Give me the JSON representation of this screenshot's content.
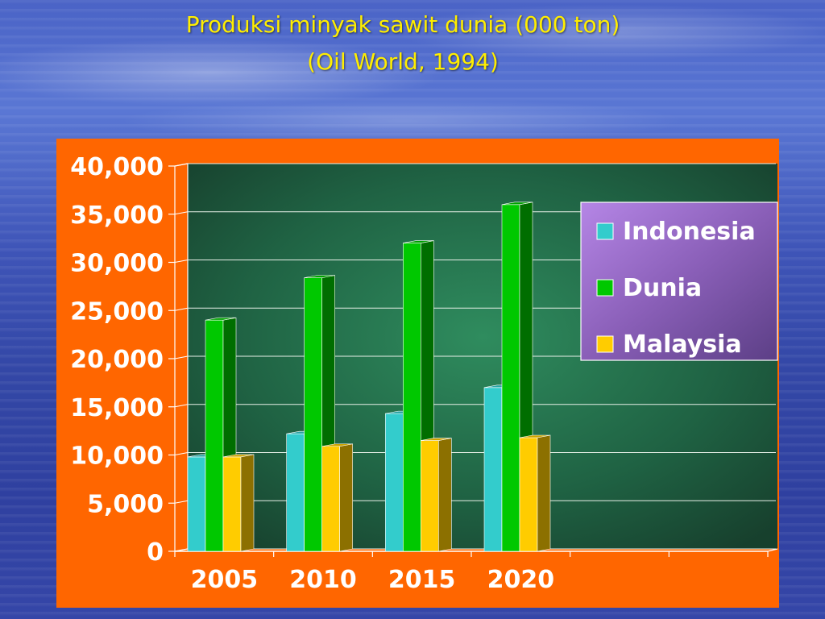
{
  "slide": {
    "title_line1": "Produksi minyak sawit dunia (000 ton)",
    "title_line2": "(Oil World, 1994)"
  },
  "colors": {
    "panel": "#ff6600",
    "plot_bg": "#1f6a44",
    "title": "#ffee00"
  },
  "chart_data": {
    "type": "bar",
    "categories": [
      "2005",
      "2010",
      "2015",
      "2020"
    ],
    "series": [
      {
        "name": "Indonesia",
        "values": [
          9800,
          12200,
          14300,
          17000
        ],
        "color": "#33cccc"
      },
      {
        "name": "Dunia",
        "values": [
          24000,
          28400,
          32000,
          36000
        ],
        "color": "#00c800"
      },
      {
        "name": "Malaysia",
        "values": [
          9800,
          10900,
          11500,
          11800
        ],
        "color": "#ffcc00"
      }
    ],
    "ylim": [
      0,
      40000
    ],
    "yticks": [
      "0",
      "5,000",
      "10,000",
      "15,000",
      "20,000",
      "25,000",
      "30,000",
      "35,000",
      "40,000"
    ],
    "grid": true,
    "legend_position": "top-right"
  }
}
